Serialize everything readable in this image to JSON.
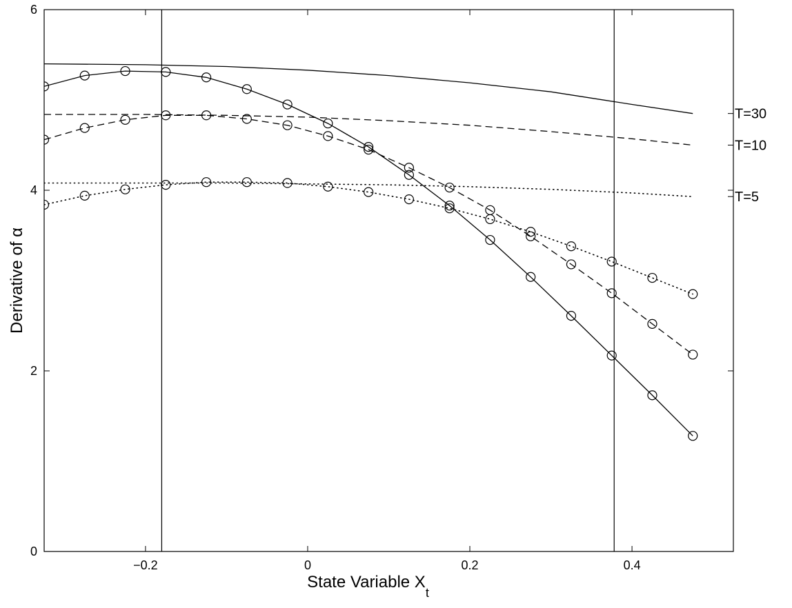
{
  "chart_data": {
    "type": "line",
    "title": "",
    "xlabel": "State Variable X",
    "xlabel_subscript": "t",
    "ylabel": "Derivative of α",
    "xlim": [
      -0.325,
      0.525
    ],
    "ylim": [
      0,
      6
    ],
    "xticks": [
      -0.2,
      0,
      0.2,
      0.4
    ],
    "xtick_labels": [
      "−0.2",
      "0",
      "0.2",
      "0.4"
    ],
    "yticks": [
      0,
      2,
      4,
      6
    ],
    "ytick_labels": [
      "0",
      "2",
      "4",
      "6"
    ],
    "grid": false,
    "vertical_lines": [
      -0.18,
      0.378
    ],
    "curve_labels": [
      "T=30",
      "T=10",
      "T=5"
    ],
    "smooth_curves": [
      {
        "label": "T=30",
        "style": "solid",
        "x": [
          -0.325,
          -0.2,
          -0.1,
          0,
          0.1,
          0.2,
          0.3,
          0.4,
          0.475
        ],
        "y": [
          5.4,
          5.39,
          5.37,
          5.33,
          5.27,
          5.19,
          5.09,
          4.95,
          4.85
        ]
      },
      {
        "label": "T=10",
        "style": "dashed",
        "x": [
          -0.325,
          -0.2,
          -0.1,
          0,
          0.1,
          0.2,
          0.3,
          0.4,
          0.475
        ],
        "y": [
          4.84,
          4.84,
          4.83,
          4.81,
          4.77,
          4.72,
          4.65,
          4.57,
          4.5
        ],
        "note_id": "t10"
      },
      {
        "label": "T=5",
        "style": "dotted",
        "x": [
          -0.325,
          -0.2,
          -0.1,
          0,
          0.1,
          0.2,
          0.3,
          0.4,
          0.475
        ],
        "y": [
          4.08,
          4.08,
          4.08,
          4.07,
          4.06,
          4.04,
          4.01,
          3.97,
          3.93
        ]
      }
    ],
    "marker_series": [
      {
        "style": "solid",
        "x": [
          -0.325,
          -0.275,
          -0.225,
          -0.175,
          -0.125,
          -0.075,
          -0.025,
          0.025,
          0.075,
          0.125,
          0.175,
          0.225,
          0.275,
          0.325,
          0.375,
          0.425,
          0.475
        ],
        "y": [
          5.15,
          5.27,
          5.32,
          5.31,
          5.25,
          5.12,
          4.95,
          4.74,
          4.48,
          4.17,
          3.83,
          3.45,
          3.04,
          2.61,
          2.17,
          1.73,
          1.28
        ]
      },
      {
        "style": "dashed",
        "x": [
          -0.325,
          -0.275,
          -0.225,
          -0.175,
          -0.125,
          -0.075,
          -0.025,
          0.025,
          0.075,
          0.125,
          0.175,
          0.225,
          0.275,
          0.325,
          0.375,
          0.425,
          0.475
        ],
        "y": [
          4.56,
          4.69,
          4.78,
          4.83,
          4.83,
          4.79,
          4.72,
          4.6,
          4.45,
          4.25,
          4.03,
          3.78,
          3.49,
          3.18,
          2.86,
          2.52,
          2.18
        ]
      },
      {
        "style": "dotted",
        "x": [
          -0.325,
          -0.275,
          -0.225,
          -0.175,
          -0.125,
          -0.075,
          -0.025,
          0.025,
          0.075,
          0.125,
          0.175,
          0.225,
          0.275,
          0.325,
          0.375,
          0.425,
          0.475
        ],
        "y": [
          3.84,
          3.94,
          4.01,
          4.06,
          4.09,
          4.09,
          4.08,
          4.04,
          3.98,
          3.9,
          3.8,
          3.68,
          3.54,
          3.38,
          3.21,
          3.03,
          2.85
        ]
      }
    ]
  }
}
